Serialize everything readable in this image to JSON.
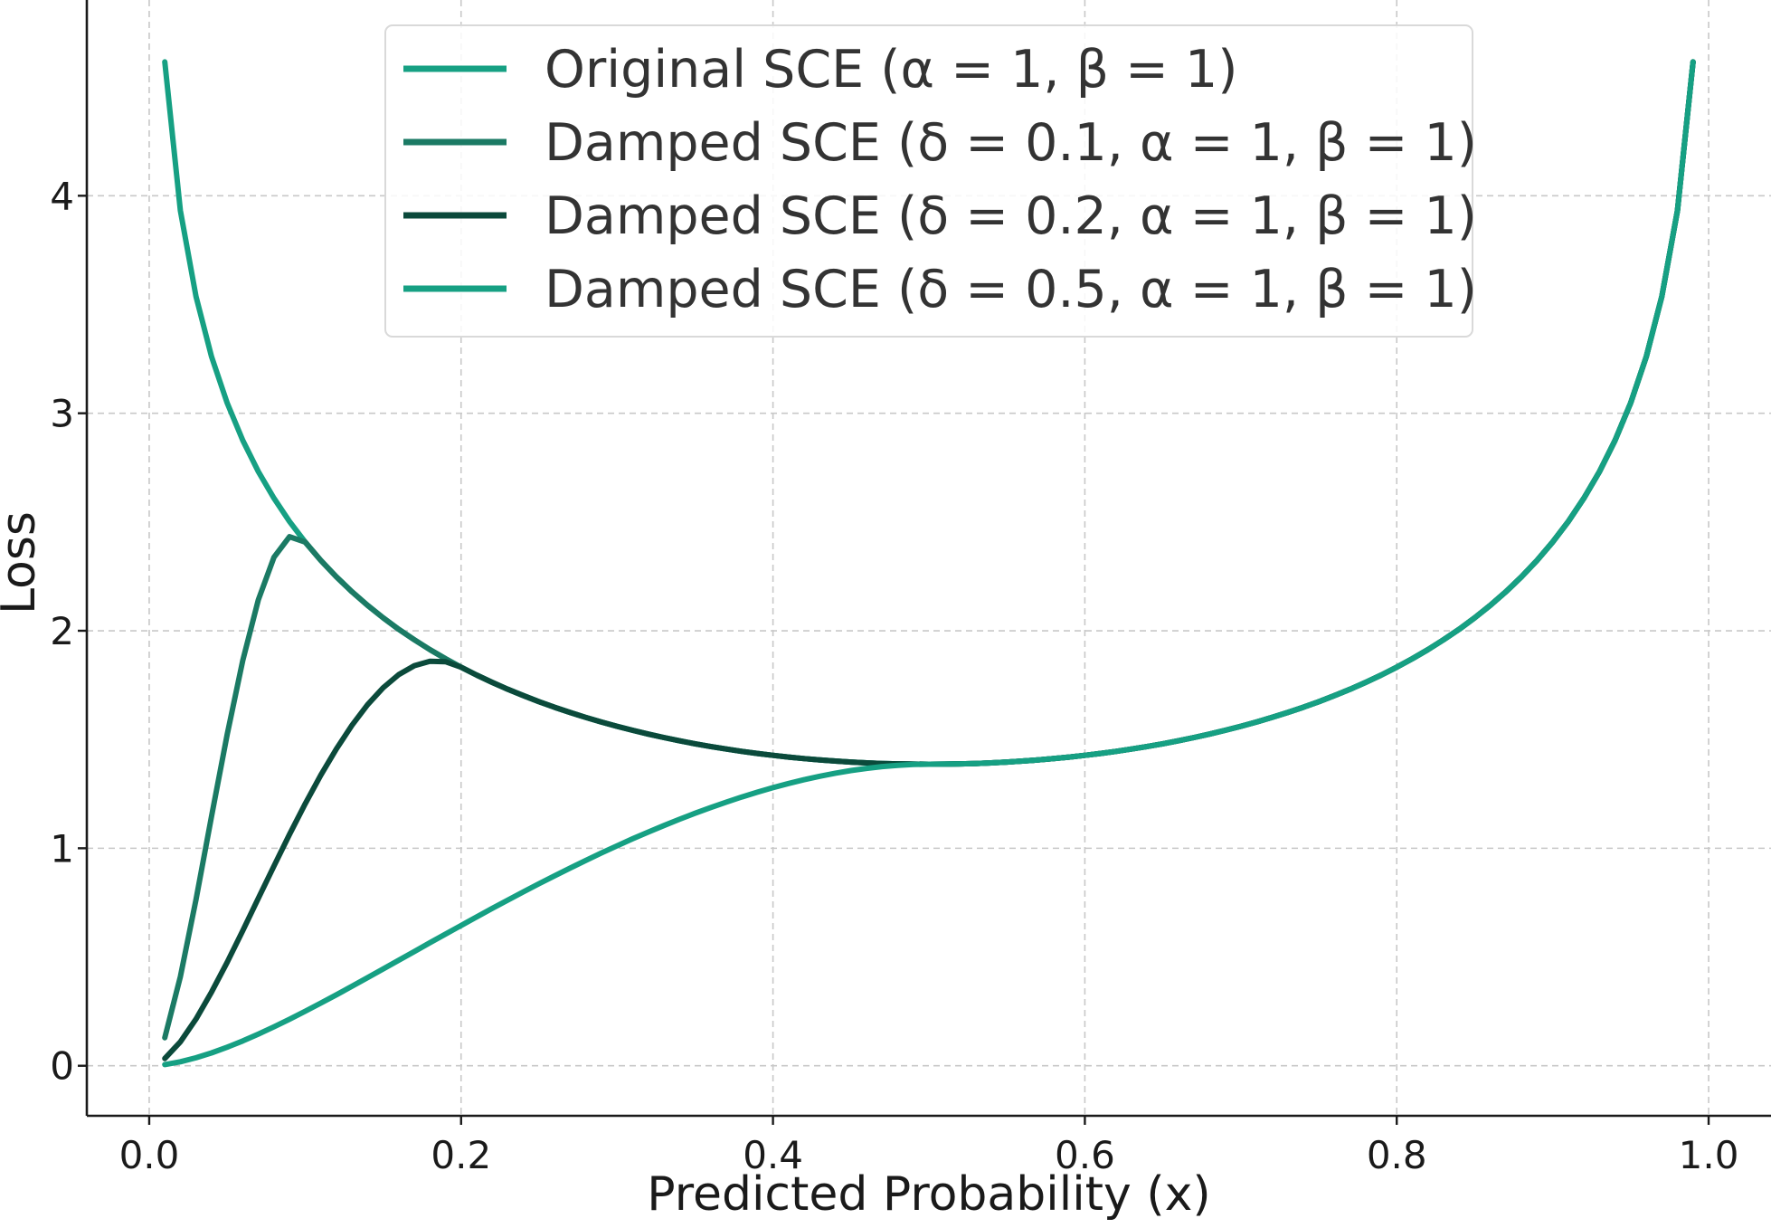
{
  "chart_data": {
    "type": "line",
    "title": "",
    "xlabel": "Predicted Probability (x)",
    "ylabel": "Loss",
    "xlim": [
      -0.04,
      1.04
    ],
    "ylim": [
      -0.23,
      4.9
    ],
    "x_ticks": [
      0.0,
      0.2,
      0.4,
      0.6,
      0.8,
      1.0
    ],
    "x_tick_labels": [
      "0.0",
      "0.2",
      "0.4",
      "0.6",
      "0.8",
      "1.0"
    ],
    "y_ticks": [
      0,
      1,
      2,
      3,
      4
    ],
    "y_tick_labels": [
      "0",
      "1",
      "2",
      "3",
      "4"
    ],
    "grid": true,
    "legend_position": "upper-center",
    "x_range": [
      0.01,
      0.99
    ],
    "series": [
      {
        "name": "Original SCE (α = 1, β = 1)",
        "color": "#16a083",
        "delta": 0
      },
      {
        "name": "Damped SCE (δ = 0.1, α = 1, β = 1)",
        "color": "#1b7a64",
        "delta": 0.1
      },
      {
        "name": "Damped SCE (δ = 0.2, α = 1, β = 1)",
        "color": "#0b4a3b",
        "delta": 0.2
      },
      {
        "name": "Damped SCE (δ = 0.5, α = 1, β = 1)",
        "color": "#16a083",
        "delta": 0.5
      }
    ]
  }
}
